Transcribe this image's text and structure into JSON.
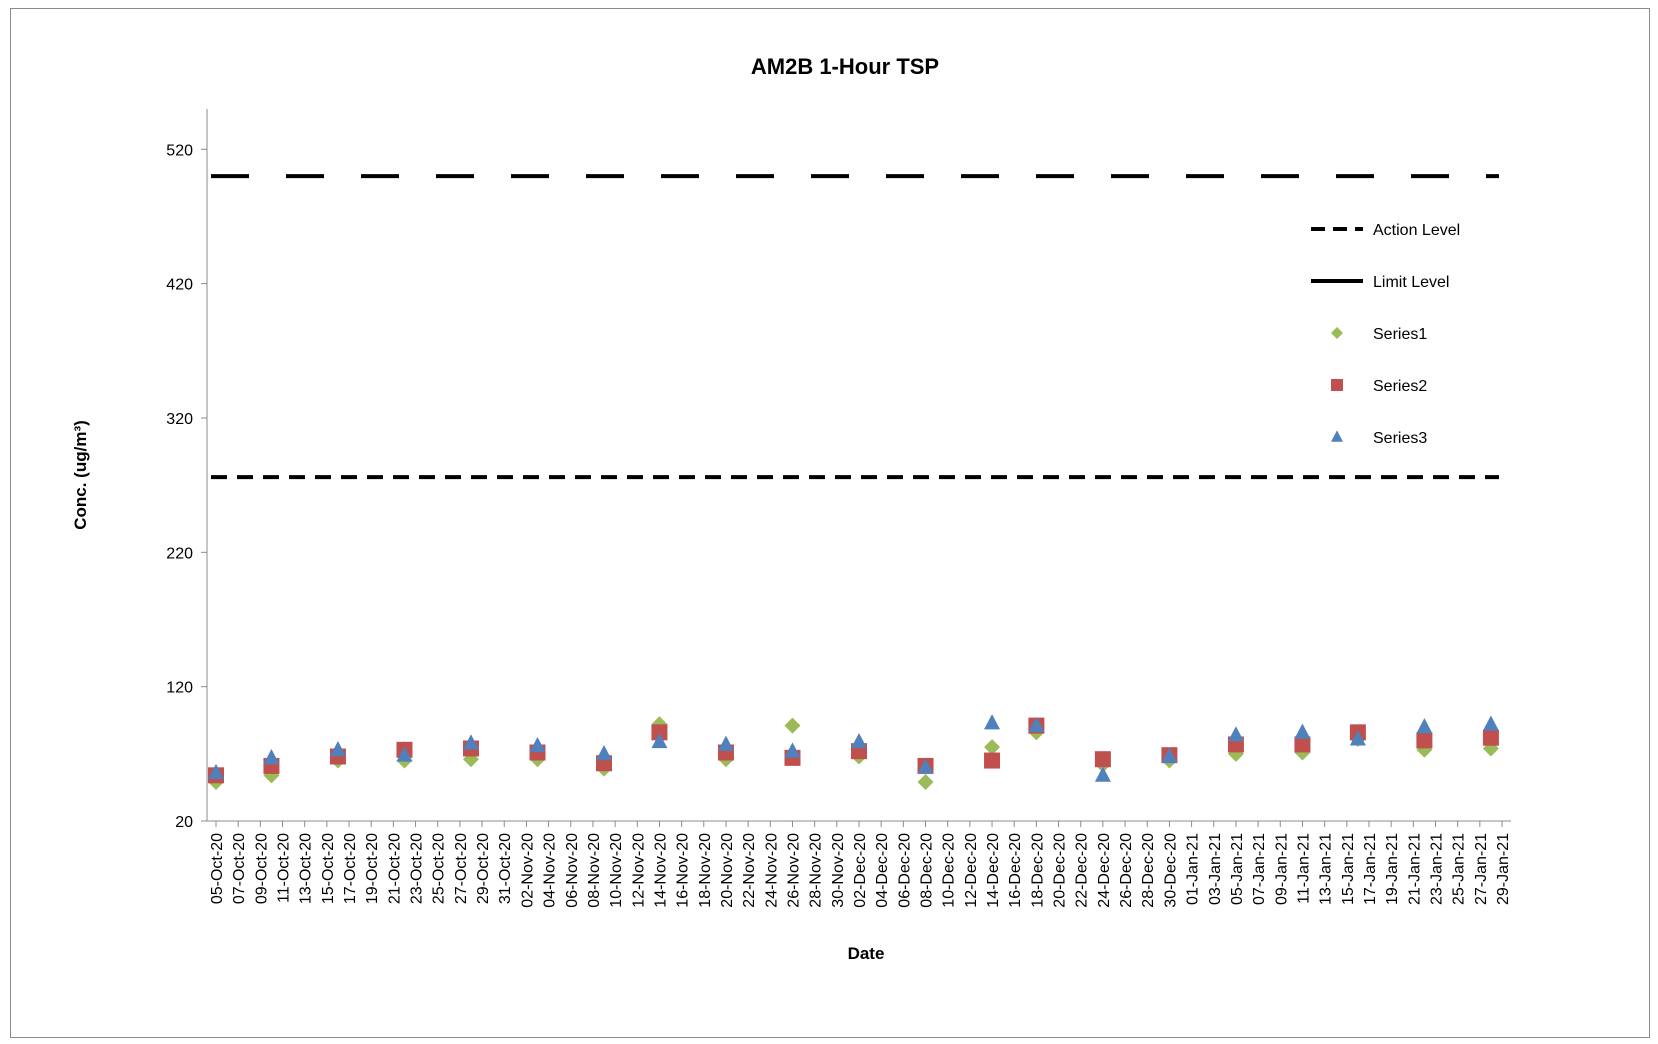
{
  "chart_data": {
    "type": "scatter",
    "title": "AM2B 1-Hour TSP",
    "xlabel": "Date",
    "ylabel": "Conc. (ug/m³)",
    "ylim": [
      20,
      550
    ],
    "yticks": [
      20,
      120,
      220,
      320,
      420,
      520
    ],
    "x_range": [
      "05-Oct-20",
      "29-Jan-21"
    ],
    "xticks": [
      "05-Oct-20",
      "07-Oct-20",
      "09-Oct-20",
      "11-Oct-20",
      "13-Oct-20",
      "15-Oct-20",
      "17-Oct-20",
      "19-Oct-20",
      "21-Oct-20",
      "23-Oct-20",
      "25-Oct-20",
      "27-Oct-20",
      "29-Oct-20",
      "31-Oct-20",
      "02-Nov-20",
      "04-Nov-20",
      "06-Nov-20",
      "08-Nov-20",
      "10-Nov-20",
      "12-Nov-20",
      "14-Nov-20",
      "16-Nov-20",
      "18-Nov-20",
      "20-Nov-20",
      "22-Nov-20",
      "24-Nov-20",
      "26-Nov-20",
      "28-Nov-20",
      "30-Nov-20",
      "02-Dec-20",
      "04-Dec-20",
      "06-Dec-20",
      "08-Dec-20",
      "10-Dec-20",
      "12-Dec-20",
      "14-Dec-20",
      "16-Dec-20",
      "18-Dec-20",
      "20-Dec-20",
      "22-Dec-20",
      "24-Dec-20",
      "26-Dec-20",
      "28-Dec-20",
      "30-Dec-20",
      "01-Jan-21",
      "03-Jan-21",
      "05-Jan-21",
      "07-Jan-21",
      "09-Jan-21",
      "11-Jan-21",
      "13-Jan-21",
      "15-Jan-21",
      "17-Jan-21",
      "19-Jan-21",
      "21-Jan-21",
      "23-Jan-21",
      "25-Jan-21",
      "27-Jan-21",
      "29-Jan-21"
    ],
    "grid": false,
    "legend_position": "right",
    "lines": [
      {
        "name": "Action Level",
        "value": 276,
        "style": "dashed",
        "color": "#000000"
      },
      {
        "name": "Limit Level",
        "value": 500,
        "style": "long-dashed",
        "color": "#000000"
      }
    ],
    "series": [
      {
        "name": "Series1",
        "marker": "diamond",
        "color": "#9bbb59",
        "x": [
          "05-Oct-20",
          "10-Oct-20",
          "16-Oct-20",
          "22-Oct-20",
          "28-Oct-20",
          "03-Nov-20",
          "09-Nov-20",
          "14-Nov-20",
          "20-Nov-20",
          "26-Nov-20",
          "02-Dec-20",
          "08-Dec-20",
          "14-Dec-20",
          "18-Dec-20",
          "24-Dec-20",
          "30-Dec-20",
          "05-Jan-21",
          "11-Jan-21",
          "16-Jan-21",
          "22-Jan-21",
          "28-Jan-21"
        ],
        "y": [
          49,
          54,
          65,
          65,
          66,
          66,
          59,
          92,
          66,
          91,
          68,
          49,
          75,
          86,
          62,
          65,
          70,
          71,
          81,
          73,
          74
        ]
      },
      {
        "name": "Series2",
        "marker": "square",
        "color": "#c0504d",
        "x": [
          "05-Oct-20",
          "10-Oct-20",
          "16-Oct-20",
          "22-Oct-20",
          "28-Oct-20",
          "03-Nov-20",
          "09-Nov-20",
          "14-Nov-20",
          "20-Nov-20",
          "26-Nov-20",
          "02-Dec-20",
          "08-Dec-20",
          "14-Dec-20",
          "18-Dec-20",
          "24-Dec-20",
          "30-Dec-20",
          "05-Jan-21",
          "11-Jan-21",
          "16-Jan-21",
          "22-Jan-21",
          "28-Jan-21"
        ],
        "y": [
          54,
          61,
          68,
          73,
          74,
          71,
          63,
          86,
          71,
          67,
          72,
          61,
          65,
          91,
          66,
          69,
          77,
          77,
          86,
          80,
          82
        ]
      },
      {
        "name": "Series3",
        "marker": "triangle",
        "color": "#4f81bd",
        "x": [
          "05-Oct-20",
          "10-Oct-20",
          "16-Oct-20",
          "22-Oct-20",
          "28-Oct-20",
          "03-Nov-20",
          "09-Nov-20",
          "14-Nov-20",
          "20-Nov-20",
          "26-Nov-20",
          "02-Dec-20",
          "08-Dec-20",
          "14-Dec-20",
          "18-Dec-20",
          "24-Dec-20",
          "30-Dec-20",
          "05-Jan-21",
          "11-Jan-21",
          "16-Jan-21",
          "22-Jan-21",
          "28-Jan-21"
        ],
        "y": [
          56,
          67,
          73,
          69,
          78,
          76,
          70,
          79,
          77,
          72,
          79,
          60,
          93,
          91,
          54,
          68,
          84,
          86,
          81,
          90,
          92
        ]
      }
    ]
  }
}
